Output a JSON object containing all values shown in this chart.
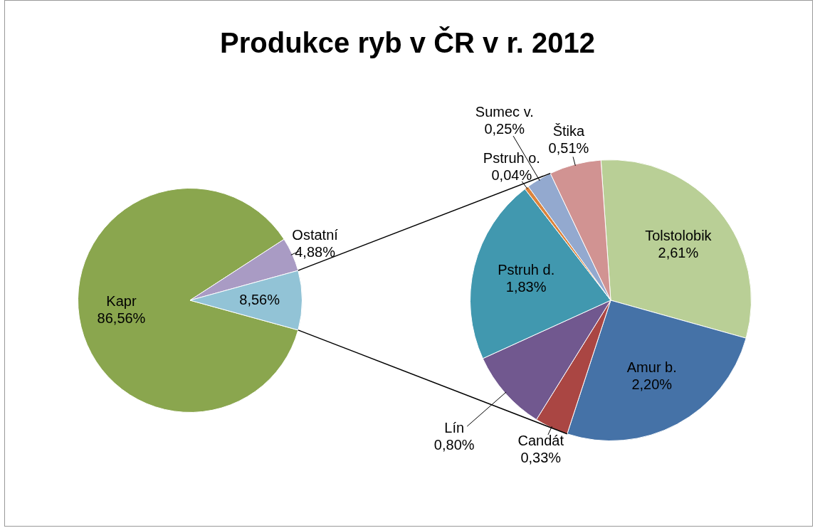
{
  "chart_data": [
    {
      "type": "pie",
      "title": "Produkce ryb v ČR v r. 2012",
      "categories": [
        "Kapr",
        "Ostatní",
        null
      ],
      "values": [
        86.56,
        4.88,
        8.56
      ],
      "value_labels": [
        "86,56%",
        "4,88%",
        "8,56%"
      ],
      "colors": [
        "#8aa64e",
        "#a99bc4",
        "#92c3d6"
      ]
    },
    {
      "type": "pie",
      "categories": [
        "Tolstolobik",
        "Amur b.",
        "Candát",
        "Lín",
        "Pstruh d.",
        "Pstruh o.",
        "Sumec v.",
        "Štika"
      ],
      "values": [
        2.61,
        2.2,
        0.33,
        0.8,
        1.83,
        0.04,
        0.25,
        0.51
      ],
      "value_labels": [
        "2,61%",
        "2,20%",
        "0,33%",
        "0,80%",
        "1,83%",
        "0,04%",
        "0,25%",
        "0,51%"
      ],
      "colors": [
        "#b9cf96",
        "#4572a7",
        "#aa4643",
        "#71588f",
        "#4198af",
        "#db843d",
        "#93a9cf",
        "#d19392"
      ]
    }
  ]
}
